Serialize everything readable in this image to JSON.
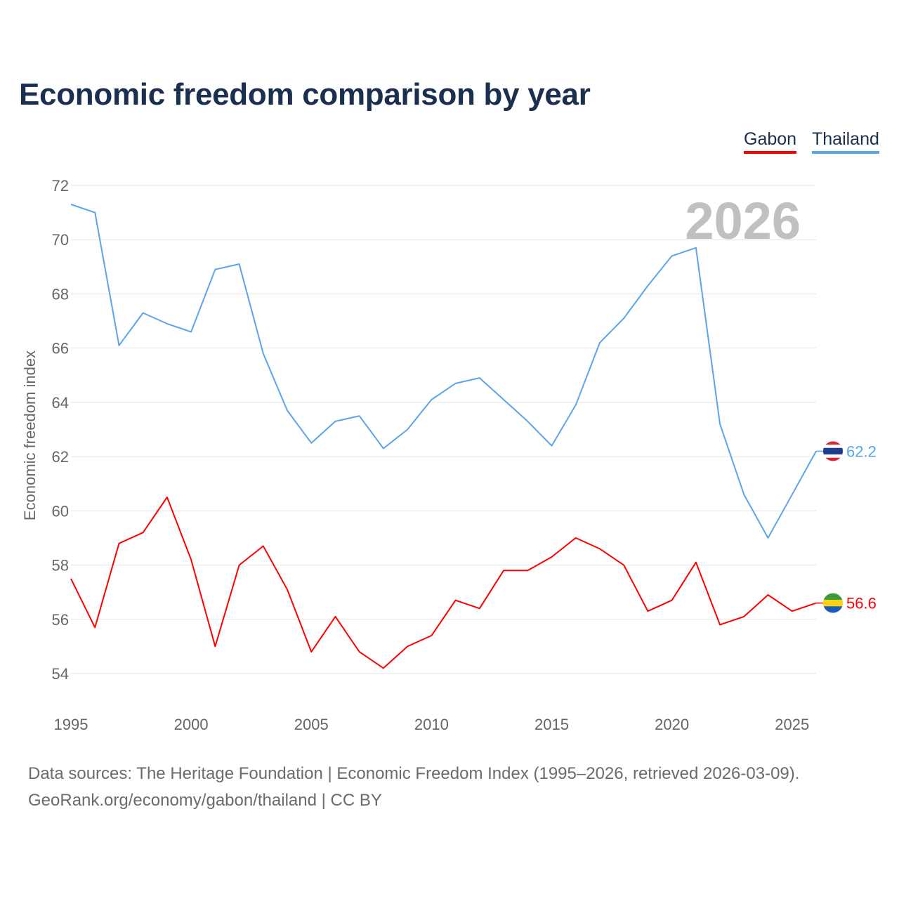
{
  "chart_data": {
    "type": "line",
    "title": "Economic freedom comparison by year",
    "xlabel": "",
    "ylabel": "Economic freedom index",
    "xlim": [
      1995,
      2026
    ],
    "ylim": [
      54,
      72
    ],
    "yticks": [
      54,
      56,
      58,
      60,
      62,
      64,
      66,
      68,
      70,
      72
    ],
    "xticks": [
      1995,
      2000,
      2005,
      2010,
      2015,
      2020,
      2025
    ],
    "grid": true,
    "legend_placement": "top-right",
    "year_watermark": "2026",
    "x": [
      1995,
      1996,
      1997,
      1998,
      1999,
      2000,
      2001,
      2002,
      2003,
      2004,
      2005,
      2006,
      2007,
      2008,
      2009,
      2010,
      2011,
      2012,
      2013,
      2014,
      2015,
      2016,
      2017,
      2018,
      2019,
      2020,
      2021,
      2022,
      2023,
      2024,
      2025,
      2026
    ],
    "series": [
      {
        "name": "Gabon",
        "color": "#ff0000",
        "end_label": "56.6",
        "values": [
          57.5,
          55.7,
          58.8,
          59.2,
          60.5,
          58.2,
          55.0,
          58.0,
          58.7,
          57.1,
          54.8,
          56.1,
          54.8,
          54.2,
          55.0,
          55.4,
          56.7,
          56.4,
          57.8,
          57.8,
          58.3,
          59.0,
          58.6,
          58.0,
          56.3,
          56.7,
          58.1,
          55.8,
          56.1,
          56.9,
          56.3,
          56.6
        ]
      },
      {
        "name": "Thailand",
        "color": "#5ba4ec",
        "end_label": "62.2",
        "values": [
          71.3,
          71.0,
          66.1,
          67.3,
          66.9,
          66.6,
          68.9,
          69.1,
          65.8,
          63.7,
          62.5,
          63.3,
          63.5,
          62.3,
          63.0,
          64.1,
          64.7,
          64.9,
          64.1,
          63.3,
          62.4,
          63.9,
          66.2,
          67.1,
          68.3,
          69.4,
          69.7,
          63.2,
          60.6,
          59.0,
          60.6,
          62.2
        ]
      }
    ]
  },
  "footer": {
    "line1": "Data sources: The Heritage Foundation | Economic Freedom Index (1995–2026, retrieved 2026-03-09).",
    "line2": "GeoRank.org/economy/gabon/thailand | CC BY"
  }
}
